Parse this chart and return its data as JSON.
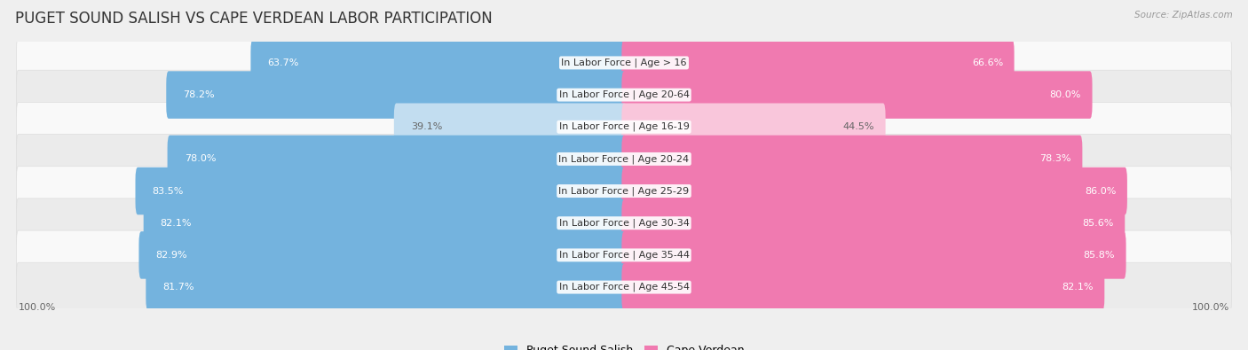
{
  "title": "PUGET SOUND SALISH VS CAPE VERDEAN LABOR PARTICIPATION",
  "source": "Source: ZipAtlas.com",
  "categories": [
    "In Labor Force | Age > 16",
    "In Labor Force | Age 20-64",
    "In Labor Force | Age 16-19",
    "In Labor Force | Age 20-24",
    "In Labor Force | Age 25-29",
    "In Labor Force | Age 30-34",
    "In Labor Force | Age 35-44",
    "In Labor Force | Age 45-54"
  ],
  "left_values": [
    63.7,
    78.2,
    39.1,
    78.0,
    83.5,
    82.1,
    82.9,
    81.7
  ],
  "right_values": [
    66.6,
    80.0,
    44.5,
    78.3,
    86.0,
    85.6,
    85.8,
    82.1
  ],
  "left_color": "#74b3de",
  "right_color": "#f07ab0",
  "left_color_light": "#c2ddf0",
  "right_color_light": "#f9c6db",
  "left_label": "Puget Sound Salish",
  "right_label": "Cape Verdean",
  "bar_height": 0.68,
  "bg_color": "#efefef",
  "row_bg_even": "#f9f9f9",
  "row_bg_odd": "#ebebeb",
  "title_fontsize": 12,
  "label_fontsize": 8,
  "value_fontsize": 8,
  "axis_max": 100.0
}
